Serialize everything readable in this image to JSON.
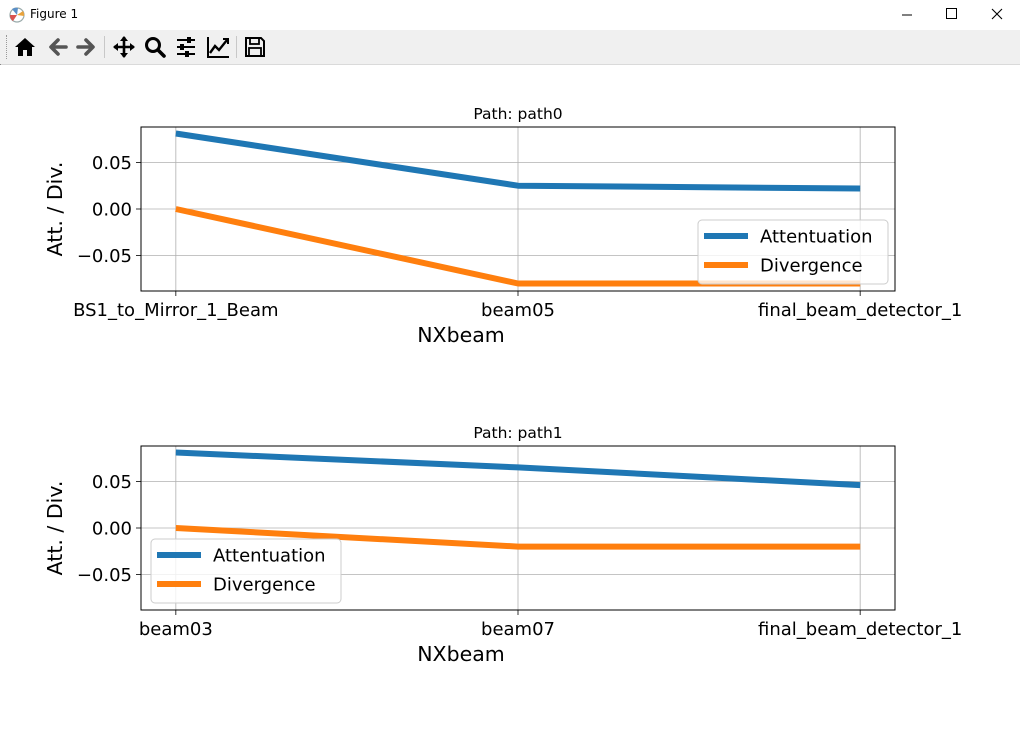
{
  "window": {
    "title": "Figure 1"
  },
  "toolbar": {
    "buttons": [
      {
        "name": "home",
        "icon": "home-icon"
      },
      {
        "name": "back",
        "icon": "arrow-left-icon"
      },
      {
        "name": "forward",
        "icon": "arrow-right-icon"
      },
      {
        "name": "pan",
        "icon": "move-icon"
      },
      {
        "name": "zoom",
        "icon": "magnifier-icon"
      },
      {
        "name": "configure-subplots",
        "icon": "sliders-icon"
      },
      {
        "name": "edit-axes",
        "icon": "line-chart-icon"
      },
      {
        "name": "save",
        "icon": "floppy-disk-icon"
      }
    ]
  },
  "colors": {
    "attenuation": "#1f77b4",
    "divergence": "#ff7f0e"
  },
  "chart_data": [
    {
      "type": "line",
      "title": "Path: path0",
      "xlabel": "NXbeam",
      "ylabel": "Att. / Div.",
      "categories": [
        "BS1_to_Mirror_1_Beam",
        "beam05",
        "final_beam_detector_1"
      ],
      "yticks": [
        "0.05",
        "0.00",
        "−0.05"
      ],
      "ytick_values": [
        0.05,
        0.0,
        -0.05
      ],
      "ylim": [
        -0.088,
        0.088
      ],
      "grid": true,
      "legend": "lower right",
      "series": [
        {
          "name": "Attentuation",
          "values": [
            0.081,
            0.025,
            0.022
          ]
        },
        {
          "name": "Divergence",
          "values": [
            0.0,
            -0.08,
            -0.08
          ]
        }
      ]
    },
    {
      "type": "line",
      "title": "Path: path1",
      "xlabel": "NXbeam",
      "ylabel": "Att. / Div.",
      "categories": [
        "beam03",
        "beam07",
        "final_beam_detector_1"
      ],
      "yticks": [
        "0.05",
        "0.00",
        "−0.05"
      ],
      "ytick_values": [
        0.05,
        0.0,
        -0.05
      ],
      "ylim": [
        -0.088,
        0.088
      ],
      "grid": true,
      "legend": "lower left",
      "series": [
        {
          "name": "Attentuation",
          "values": [
            0.081,
            0.065,
            0.046
          ]
        },
        {
          "name": "Divergence",
          "values": [
            0.0,
            -0.02,
            -0.02
          ]
        }
      ]
    }
  ]
}
